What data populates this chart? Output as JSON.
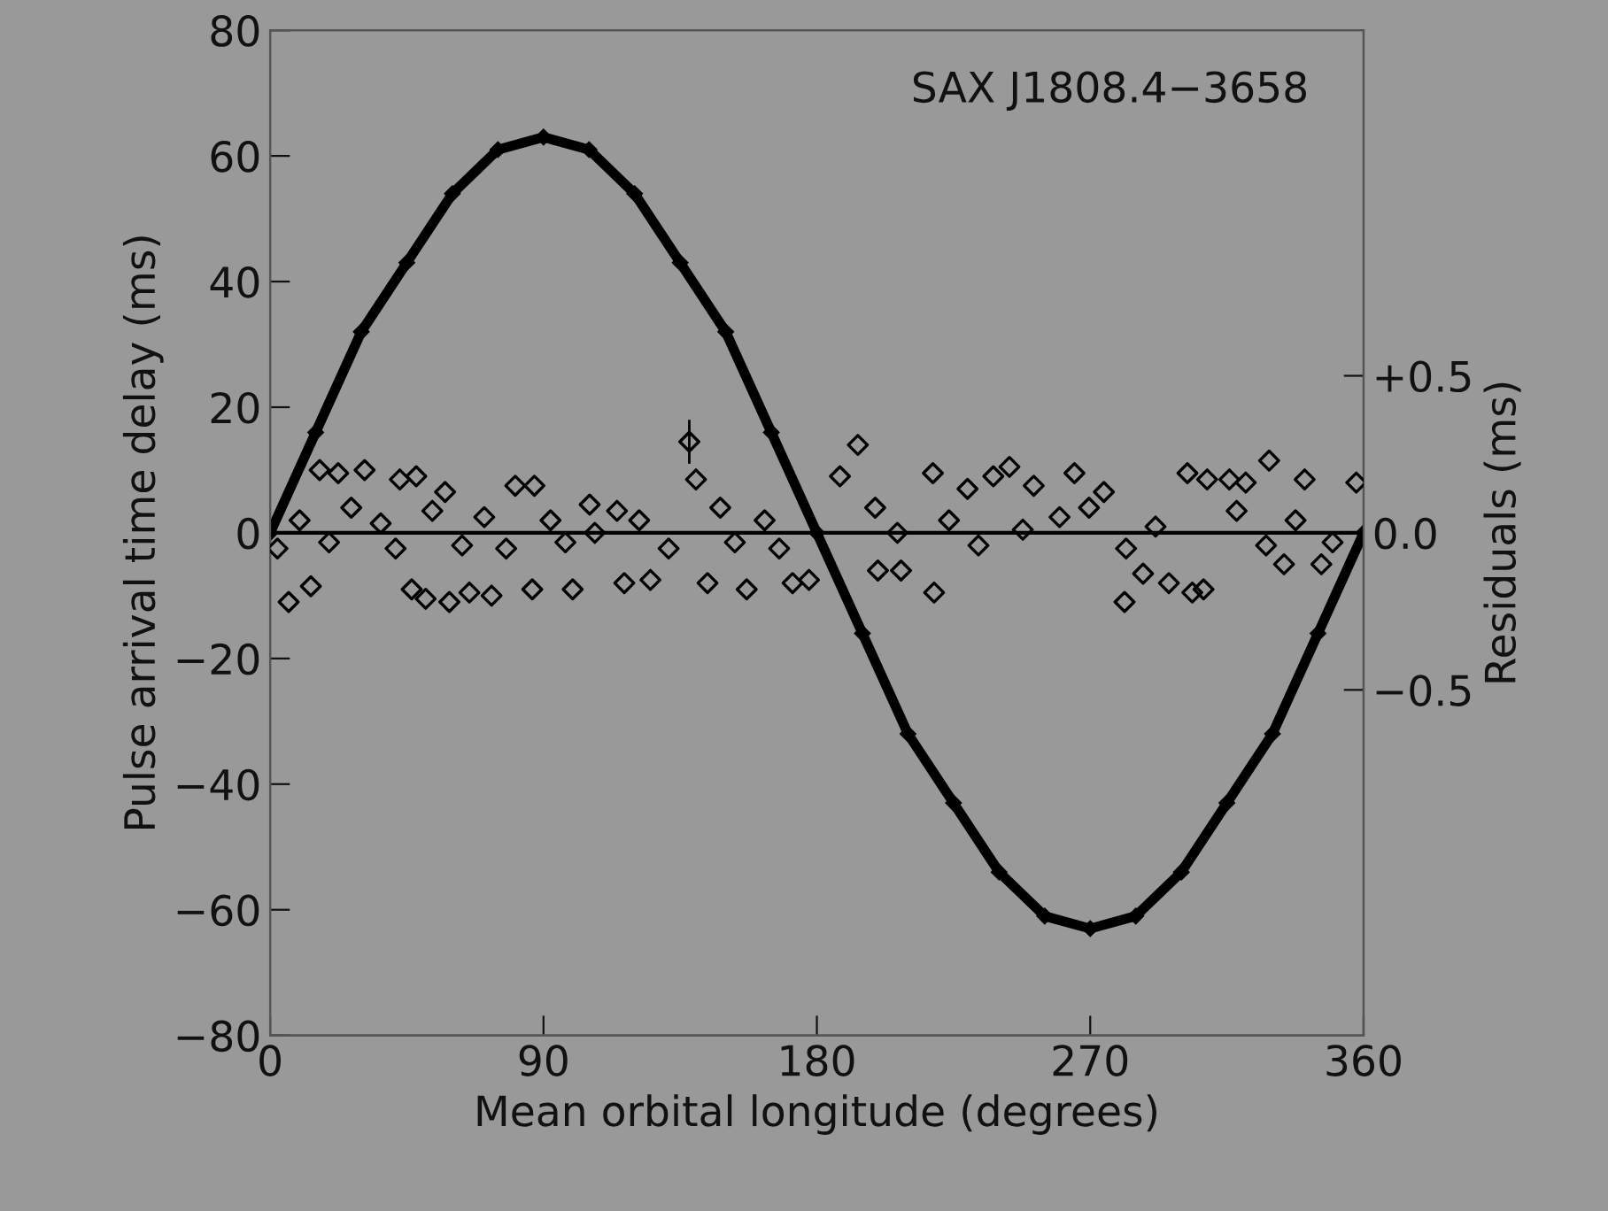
{
  "chart_data": {
    "type": "scatter",
    "xlabel": "Mean orbital longitude (degrees)",
    "ylabel": "Pulse arrival time delay (ms)",
    "y2label": "Residuals (ms)",
    "annotations": [
      "SAX J1808.4−3658"
    ],
    "xlim": [
      0,
      360
    ],
    "xticks": [
      0,
      90,
      180,
      270,
      360
    ],
    "ylim": [
      -80,
      80
    ],
    "yticks": [
      {
        "value": -80,
        "label": "−80"
      },
      {
        "value": -60,
        "label": "−60"
      },
      {
        "value": -40,
        "label": "−40"
      },
      {
        "value": -20,
        "label": "−20"
      },
      0,
      20,
      40,
      60,
      80
    ],
    "y2lim": [
      -1.6,
      1.6
    ],
    "y2ticks": [
      {
        "value": -0.5,
        "label": "−0.5"
      },
      {
        "value": 0,
        "label": "0.0"
      },
      {
        "value": 0.5,
        "label": "+0.5"
      }
    ],
    "ref_lines": [
      {
        "axis": "y2",
        "value": 0,
        "color": "#000000"
      }
    ],
    "marker": "diamond",
    "grid": false,
    "legend": false,
    "series": [
      {
        "type": "line",
        "color": "#000000",
        "x": [
          0,
          15,
          30,
          45,
          60,
          75,
          90,
          105,
          120,
          135,
          150,
          165,
          180,
          195,
          210,
          225,
          240,
          255,
          270,
          285,
          300,
          315,
          330,
          345,
          360
        ],
        "values": [
          0,
          16,
          32,
          43,
          54,
          61,
          63,
          61,
          54,
          43,
          32,
          16,
          0,
          -16,
          -32,
          -43,
          -54,
          -61,
          -63,
          -61,
          -54,
          -43,
          -32,
          -16,
          0
        ]
      },
      {
        "axis": "y2",
        "color": "#000000",
        "x": [
          2.4,
          6.1,
          9.7,
          13.4,
          16.3,
          19.4,
          22.4,
          26.7,
          31.1,
          36.4,
          41.3,
          42.7,
          46.6,
          48.1,
          51.2,
          53.4,
          57.6,
          59.0,
          63.2,
          65.6,
          70.5,
          72.9,
          77.7,
          80.7,
          86.3,
          87.0,
          92.3,
          97.2,
          99.6,
          105.2,
          106.9,
          114.2,
          116.6,
          121.5,
          125.2,
          131.2,
          138.0,
          140.2,
          144.0,
          148.2,
          153.0,
          156.9,
          162.8,
          167.6,
          172.0,
          177.4,
          187.6,
          193.5,
          199.2,
          200.1,
          206.5,
          207.7,
          218.2,
          218.6,
          223.5,
          229.6,
          233.2,
          238.1,
          243.4,
          247.8,
          251.4,
          259.9,
          264.8,
          269.6,
          274.5,
          281.3,
          281.8,
          287.4,
          291.5,
          295.9,
          302.0,
          303.6,
          307.3,
          308.5,
          315.8,
          318.2,
          321.2,
          327.9,
          328.9,
          333.8,
          337.6,
          340.6,
          346.1,
          349.8,
          357.6
        ],
        "values": [
          -0.05,
          -0.22,
          0.04,
          -0.17,
          0.2,
          -0.03,
          0.19,
          0.08,
          0.2,
          0.03,
          -0.05,
          0.17,
          -0.18,
          0.18,
          -0.21,
          0.07,
          0.13,
          -0.22,
          -0.04,
          -0.19,
          0.05,
          -0.2,
          -0.05,
          0.15,
          -0.18,
          0.15,
          0.04,
          -0.03,
          -0.18,
          0.09,
          0.0,
          0.07,
          -0.16,
          0.04,
          -0.15,
          -0.05,
          0.29,
          0.17,
          -0.16,
          0.08,
          -0.03,
          -0.18,
          0.04,
          -0.05,
          -0.16,
          -0.15,
          0.18,
          0.28,
          0.08,
          -0.12,
          0.0,
          -0.12,
          0.19,
          -0.19,
          0.04,
          0.14,
          -0.04,
          0.18,
          0.21,
          0.01,
          0.15,
          0.05,
          0.19,
          0.08,
          0.13,
          -0.22,
          -0.05,
          -0.13,
          0.02,
          -0.16,
          0.19,
          -0.19,
          -0.18,
          0.17,
          0.17,
          0.07,
          0.16,
          -0.04,
          0.23,
          -0.1,
          0.04,
          0.17,
          -0.1,
          -0.03,
          0.16
        ],
        "errors": [
          null,
          null,
          null,
          null,
          null,
          null,
          null,
          null,
          null,
          null,
          null,
          null,
          null,
          null,
          null,
          null,
          null,
          null,
          null,
          null,
          null,
          null,
          null,
          null,
          null,
          null,
          null,
          null,
          null,
          null,
          null,
          null,
          null,
          null,
          null,
          null,
          0.07,
          null,
          null,
          null,
          null,
          null,
          null,
          null,
          null,
          null,
          null,
          null,
          null,
          null,
          null,
          null,
          null,
          null,
          null,
          null,
          null,
          null,
          null,
          null,
          null,
          null,
          null,
          null,
          null,
          null,
          null,
          null,
          null,
          null,
          null,
          null,
          null,
          null,
          null,
          null,
          null,
          null,
          null,
          null,
          null,
          null,
          null,
          null,
          null
        ]
      }
    ]
  }
}
